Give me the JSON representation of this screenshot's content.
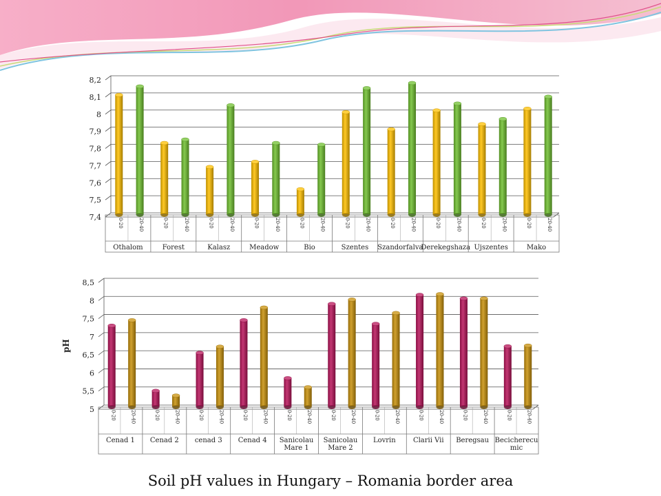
{
  "caption": "Soil pH values in Hungary – Romania border area",
  "colors": {
    "yellow": "#ffc000",
    "green": "#70c030",
    "magenta": "#b8145a",
    "gold": "#c8900a",
    "banner_pink": "#f08cb0",
    "banner_blue": "#7fc4e0"
  },
  "chart_data": [
    {
      "type": "bar",
      "title": "",
      "xlabel": "",
      "ylabel": "",
      "ylim": [
        7.4,
        8.2
      ],
      "yticks": [
        "7,4",
        "7,5",
        "7,6",
        "7,7",
        "7,8",
        "7,9",
        "8",
        "8,1",
        "8,2"
      ],
      "depth_labels": [
        "0-20",
        "20-40"
      ],
      "groups": [
        "Othalom",
        "Forest",
        "Kalasz",
        "Meadow",
        "Bio",
        "Szentes",
        "Szandorfalva",
        "Derekegshaza",
        "Ujszentes",
        "Mako"
      ],
      "series": [
        {
          "values": [
            8.1,
            7.82,
            7.68,
            7.71,
            7.55,
            8.0,
            7.9,
            8.01,
            7.93,
            8.02
          ]
        },
        {
          "values": [
            8.15,
            7.84,
            8.04,
            7.82,
            7.81,
            8.14,
            8.17,
            8.05,
            7.96,
            8.09
          ]
        }
      ],
      "grid": true
    },
    {
      "type": "bar",
      "title": "",
      "xlabel": "",
      "ylabel": "pH",
      "ylim": [
        5,
        8.5
      ],
      "yticks": [
        "5",
        "5,5",
        "6",
        "6,5",
        "7",
        "7,5",
        "8",
        "8,5"
      ],
      "depth_labels": [
        "0-20",
        "20-40"
      ],
      "groups": [
        "Cenad 1",
        "Cenad 2",
        "cenad 3",
        "Cenad 4",
        "Sanicolau Mare 1",
        "Sanicolau Mare 2",
        "Lovrin",
        "Clarii Vii",
        "Beregsau",
        "Becicherecu mic"
      ],
      "series": [
        {
          "values": [
            7.25,
            5.45,
            6.5,
            7.4,
            5.8,
            7.85,
            7.3,
            8.1,
            8.0,
            6.68
          ]
        },
        {
          "values": [
            7.4,
            5.32,
            6.67,
            7.75,
            5.55,
            7.97,
            7.6,
            8.12,
            8.0,
            6.7
          ]
        }
      ],
      "grid": true
    }
  ]
}
